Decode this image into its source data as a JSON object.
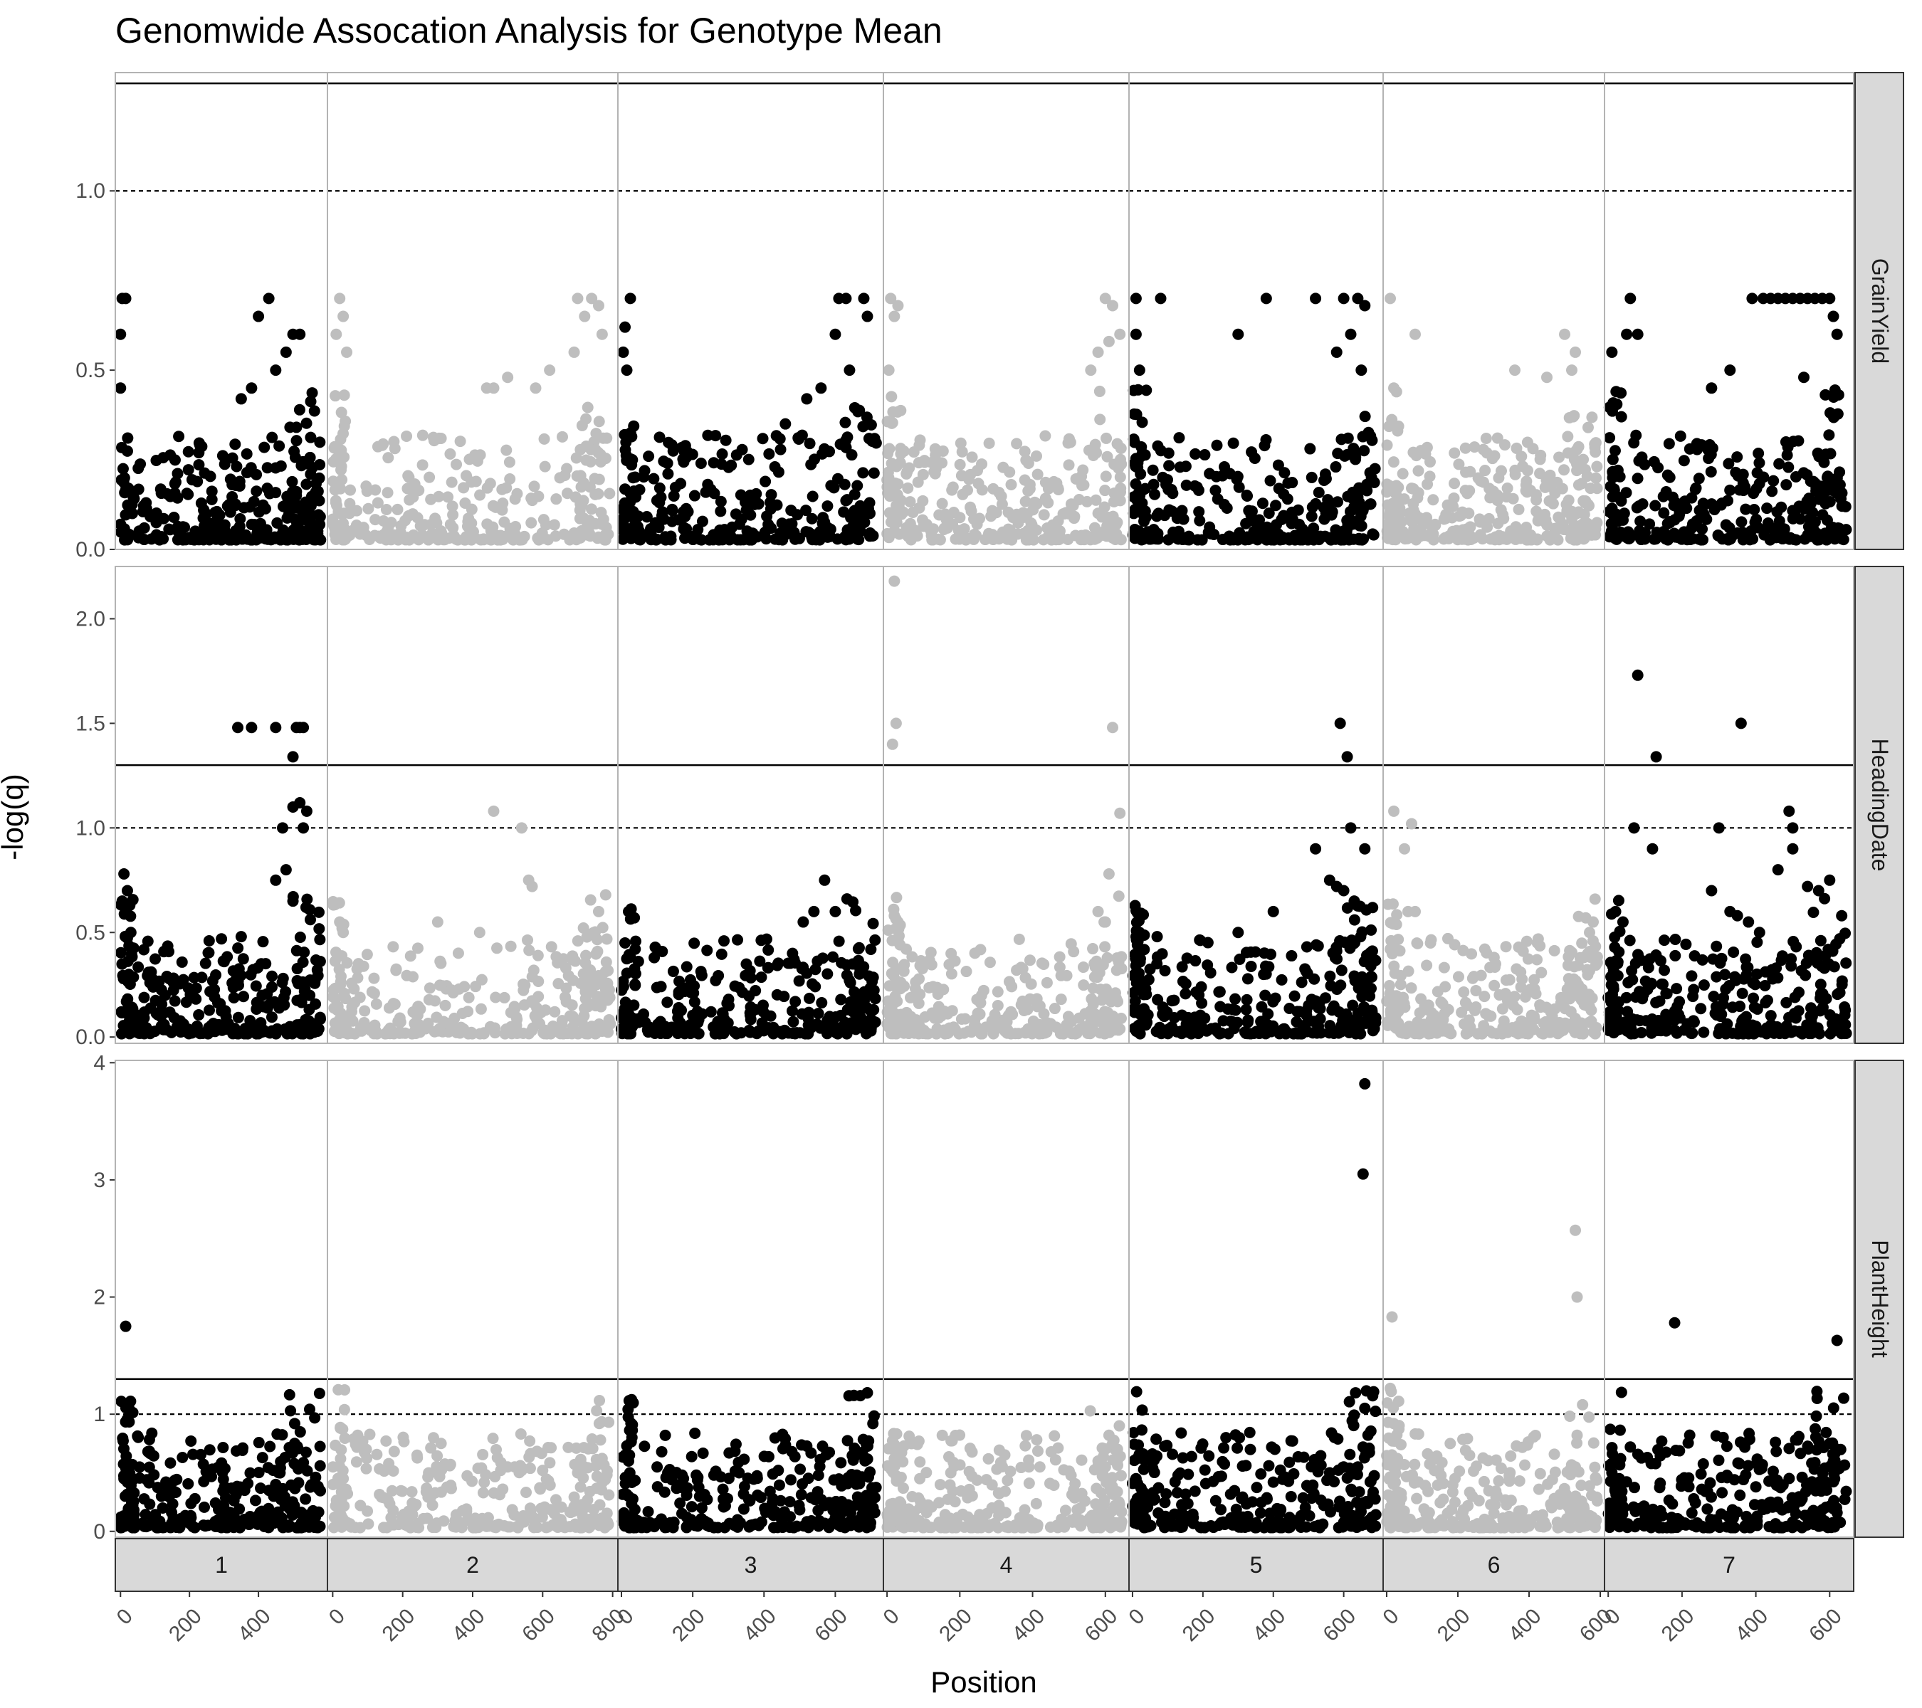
{
  "chart_data": {
    "type": "scatter",
    "title": "Genomwide Assocation Analysis for Genotype Mean",
    "xlabel": "Position",
    "ylabel": "-log(q)",
    "facet_columns": [
      "1",
      "2",
      "3",
      "4",
      "5",
      "6",
      "7"
    ],
    "facet_rows": [
      "GrainYield",
      "HeadingDate",
      "PlantHeight"
    ],
    "x_ticks": [
      [
        "0",
        "200",
        "400"
      ],
      [
        "0",
        "200",
        "400",
        "600",
        "800"
      ],
      [
        "0",
        "200",
        "400",
        "600"
      ],
      [
        "0",
        "200",
        "400",
        "600"
      ],
      [
        "0",
        "200",
        "400",
        "600"
      ],
      [
        "0",
        "200",
        "400",
        "600"
      ],
      [
        "0",
        "200",
        "400",
        "600"
      ]
    ],
    "x_ranges": [
      [
        -15,
        600
      ],
      [
        -15,
        815
      ],
      [
        -10,
        735
      ],
      [
        -10,
        665
      ],
      [
        -10,
        712
      ],
      [
        -10,
        612
      ],
      [
        -10,
        665
      ]
    ],
    "column_colors": [
      "#000000",
      "#bebebe",
      "#000000",
      "#bebebe",
      "#000000",
      "#bebebe",
      "#000000"
    ],
    "rows": [
      {
        "name": "GrainYield",
        "ylim": [
          0,
          1.33
        ],
        "y_ticks": [
          "0.0",
          "0.5",
          "1.0"
        ],
        "solid_threshold": 1.3,
        "dashed_threshold": 1.0,
        "baseline_max": 0.22,
        "highlights": [
          [
            [
              5,
              0.7
            ],
            [
              15,
              0.7
            ],
            [
              0,
              0.6
            ],
            [
              0,
              0.45
            ],
            [
              430,
              0.7
            ],
            [
              400,
              0.65
            ],
            [
              500,
              0.6
            ],
            [
              480,
              0.55
            ],
            [
              520,
              0.6
            ],
            [
              450,
              0.5
            ],
            [
              380,
              0.45
            ],
            [
              350,
              0.42
            ]
          ],
          [
            [
              20,
              0.7
            ],
            [
              30,
              0.65
            ],
            [
              10,
              0.6
            ],
            [
              40,
              0.55
            ],
            [
              700,
              0.7
            ],
            [
              740,
              0.7
            ],
            [
              760,
              0.68
            ],
            [
              720,
              0.65
            ],
            [
              770,
              0.6
            ],
            [
              690,
              0.55
            ],
            [
              620,
              0.5
            ],
            [
              580,
              0.45
            ],
            [
              500,
              0.48
            ],
            [
              460,
              0.45
            ],
            [
              440,
              0.45
            ]
          ],
          [
            [
              25,
              0.7
            ],
            [
              10,
              0.62
            ],
            [
              5,
              0.55
            ],
            [
              15,
              0.5
            ],
            [
              610,
              0.7
            ],
            [
              630,
              0.7
            ],
            [
              680,
              0.7
            ],
            [
              690,
              0.65
            ],
            [
              600,
              0.6
            ],
            [
              640,
              0.5
            ],
            [
              560,
              0.45
            ],
            [
              520,
              0.42
            ],
            [
              460,
              0.35
            ]
          ],
          [
            [
              10,
              0.7
            ],
            [
              30,
              0.68
            ],
            [
              20,
              0.65
            ],
            [
              5,
              0.5
            ],
            [
              600,
              0.7
            ],
            [
              620,
              0.68
            ],
            [
              640,
              0.6
            ],
            [
              580,
              0.55
            ],
            [
              560,
              0.5
            ],
            [
              610,
              0.58
            ]
          ],
          [
            [
              10,
              0.7
            ],
            [
              80,
              0.7
            ],
            [
              380,
              0.7
            ],
            [
              520,
              0.7
            ],
            [
              600,
              0.7
            ],
            [
              640,
              0.7
            ],
            [
              660,
              0.68
            ],
            [
              620,
              0.6
            ],
            [
              300,
              0.6
            ],
            [
              580,
              0.55
            ],
            [
              650,
              0.5
            ],
            [
              10,
              0.6
            ],
            [
              20,
              0.5
            ]
          ],
          [
            [
              10,
              0.7
            ],
            [
              80,
              0.6
            ],
            [
              500,
              0.6
            ],
            [
              530,
              0.55
            ],
            [
              360,
              0.5
            ],
            [
              450,
              0.48
            ],
            [
              20,
              0.45
            ],
            [
              520,
              0.5
            ]
          ],
          [
            [
              60,
              0.7
            ],
            [
              50,
              0.6
            ],
            [
              80,
              0.6
            ],
            [
              390,
              0.7
            ],
            [
              420,
              0.7
            ],
            [
              440,
              0.7
            ],
            [
              460,
              0.7
            ],
            [
              480,
              0.7
            ],
            [
              500,
              0.7
            ],
            [
              520,
              0.7
            ],
            [
              540,
              0.7
            ],
            [
              560,
              0.7
            ],
            [
              580,
              0.7
            ],
            [
              600,
              0.7
            ],
            [
              610,
              0.65
            ],
            [
              620,
              0.6
            ],
            [
              330,
              0.5
            ],
            [
              530,
              0.48
            ],
            [
              280,
              0.45
            ],
            [
              10,
              0.55
            ]
          ]
        ]
      },
      {
        "name": "HeadingDate",
        "ylim": [
          -0.03,
          2.25
        ],
        "y_ticks": [
          "0.0",
          "0.5",
          "1.0",
          "1.5",
          "2.0"
        ],
        "solid_threshold": 1.3,
        "dashed_threshold": 1.0,
        "baseline_max": 0.2,
        "highlights": [
          [
            [
              380,
              1.48
            ],
            [
              340,
              1.48
            ],
            [
              450,
              1.48
            ],
            [
              510,
              1.48
            ],
            [
              520,
              1.48
            ],
            [
              530,
              1.48
            ],
            [
              500,
              1.34
            ],
            [
              520,
              1.12
            ],
            [
              540,
              1.08
            ],
            [
              530,
              1.0
            ],
            [
              500,
              1.1
            ],
            [
              470,
              1.0
            ],
            [
              10,
              0.78
            ],
            [
              20,
              0.7
            ],
            [
              5,
              0.65
            ],
            [
              30,
              0.5
            ],
            [
              450,
              0.75
            ],
            [
              480,
              0.8
            ],
            [
              500,
              0.65
            ],
            [
              350,
              0.48
            ]
          ],
          [
            [
              460,
              1.08
            ],
            [
              540,
              1.0
            ],
            [
              560,
              0.75
            ],
            [
              570,
              0.72
            ],
            [
              780,
              0.68
            ],
            [
              760,
              0.6
            ],
            [
              20,
              0.55
            ],
            [
              30,
              0.5
            ],
            [
              300,
              0.55
            ],
            [
              420,
              0.5
            ]
          ],
          [
            [
              20,
              0.6
            ],
            [
              10,
              0.45
            ],
            [
              570,
              0.75
            ],
            [
              540,
              0.6
            ],
            [
              600,
              0.6
            ],
            [
              510,
              0.55
            ],
            [
              480,
              0.4
            ]
          ],
          [
            [
              20,
              2.18
            ],
            [
              25,
              1.5
            ],
            [
              15,
              1.4
            ],
            [
              620,
              1.48
            ],
            [
              640,
              1.07
            ],
            [
              610,
              0.78
            ],
            [
              20,
              0.58
            ],
            [
              30,
              0.55
            ],
            [
              580,
              0.6
            ],
            [
              600,
              0.55
            ]
          ],
          [
            [
              590,
              1.5
            ],
            [
              610,
              1.34
            ],
            [
              620,
              1.0
            ],
            [
              660,
              0.9
            ],
            [
              520,
              0.9
            ],
            [
              560,
              0.75
            ],
            [
              580,
              0.72
            ],
            [
              600,
              0.7
            ],
            [
              630,
              0.65
            ],
            [
              400,
              0.6
            ],
            [
              10,
              0.48
            ],
            [
              20,
              0.5
            ],
            [
              70,
              0.48
            ],
            [
              300,
              0.5
            ]
          ],
          [
            [
              20,
              1.08
            ],
            [
              70,
              1.02
            ],
            [
              50,
              0.9
            ],
            [
              60,
              0.6
            ],
            [
              80,
              0.6
            ],
            [
              10,
              0.42
            ],
            [
              580,
              0.55
            ],
            [
              570,
              0.5
            ]
          ],
          [
            [
              80,
              1.73
            ],
            [
              130,
              1.34
            ],
            [
              360,
              1.5
            ],
            [
              490,
              1.08
            ],
            [
              500,
              1.0
            ],
            [
              300,
              1.0
            ],
            [
              70,
              1.0
            ],
            [
              120,
              0.9
            ],
            [
              500,
              0.9
            ],
            [
              460,
              0.8
            ],
            [
              280,
              0.7
            ],
            [
              330,
              0.6
            ],
            [
              350,
              0.58
            ],
            [
              380,
              0.55
            ],
            [
              410,
              0.5
            ],
            [
              540,
              0.72
            ],
            [
              600,
              0.75
            ],
            [
              570,
              0.7
            ],
            [
              20,
              0.6
            ],
            [
              40,
              0.55
            ]
          ]
        ]
      },
      {
        "name": "PlantHeight",
        "ylim": [
          -0.05,
          4.02
        ],
        "y_ticks": [
          "0",
          "1",
          "2",
          "3",
          "4"
        ],
        "solid_threshold": 1.3,
        "dashed_threshold": 1.0,
        "baseline_max": 0.2,
        "highlights": [
          [
            [
              15,
              1.75
            ],
            [
              505,
              0.92
            ],
            [
              505,
              0.75
            ],
            [
              10,
              0.45
            ],
            [
              20,
              0.42
            ],
            [
              360,
              0.35
            ],
            [
              450,
              0.4
            ]
          ],
          [
            [
              500,
              0.55
            ],
            [
              520,
              0.55
            ],
            [
              480,
              0.52
            ],
            [
              540,
              0.52
            ],
            [
              600,
              0.52
            ],
            [
              700,
              0.5
            ],
            [
              720,
              0.55
            ],
            [
              30,
              0.45
            ],
            [
              20,
              0.4
            ]
          ],
          [
            [
              15,
              0.73
            ],
            [
              10,
              0.65
            ],
            [
              20,
              0.6
            ],
            [
              100,
              0.55
            ],
            [
              130,
              0.5
            ],
            [
              170,
              0.48
            ],
            [
              210,
              0.48
            ],
            [
              330,
              0.5
            ],
            [
              440,
              0.52
            ],
            [
              660,
              0.48
            ]
          ],
          [
            [
              20,
              0.62
            ],
            [
              10,
              0.55
            ],
            [
              90,
              0.45
            ],
            [
              390,
              0.55
            ],
            [
              420,
              0.55
            ],
            [
              610,
              0.82
            ],
            [
              620,
              0.75
            ],
            [
              580,
              0.6
            ],
            [
              600,
              0.55
            ]
          ],
          [
            [
              660,
              3.82
            ],
            [
              655,
              3.05
            ],
            [
              660,
              1.05
            ],
            [
              655,
              0.72
            ],
            [
              600,
              0.55
            ],
            [
              520,
              0.55
            ],
            [
              560,
              0.5
            ],
            [
              640,
              0.55
            ],
            [
              10,
              0.45
            ],
            [
              400,
              0.42
            ]
          ],
          [
            [
              15,
              1.83
            ],
            [
              10,
              1.22
            ],
            [
              20,
              0.92
            ],
            [
              530,
              2.57
            ],
            [
              535,
              2.0
            ],
            [
              535,
              0.82
            ],
            [
              530,
              0.55
            ],
            [
              10,
              0.6
            ],
            [
              20,
              0.55
            ]
          ],
          [
            [
              180,
              1.78
            ],
            [
              620,
              1.63
            ],
            [
              60,
              0.72
            ],
            [
              600,
              0.75
            ],
            [
              620,
              0.7
            ],
            [
              10,
              0.5
            ],
            [
              30,
              0.45
            ],
            [
              400,
              0.38
            ],
            [
              610,
              0.6
            ]
          ]
        ]
      }
    ],
    "grid": false,
    "legend": "none"
  }
}
